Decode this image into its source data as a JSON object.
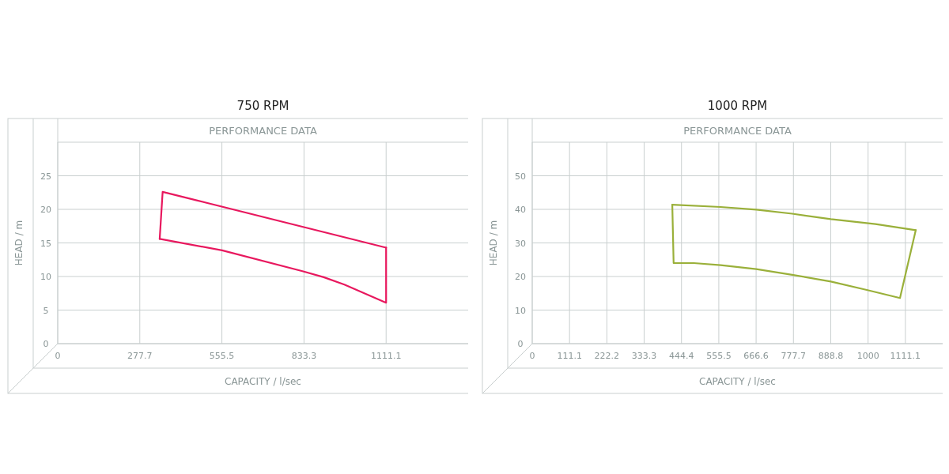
{
  "chart_data": [
    {
      "type": "line",
      "title": "750 RPM",
      "subtitle": "PERFORMANCE DATA",
      "xlabel": "CAPACITY / l/sec",
      "ylabel": "HEAD / m",
      "xlim": [
        0,
        1388.8
      ],
      "xticks": [
        0,
        277.7,
        555.5,
        833.3,
        1111.1
      ],
      "ylim": [
        0,
        30
      ],
      "yticks": [
        0,
        5,
        10,
        15,
        20,
        25
      ],
      "grid": true,
      "marker": "none",
      "line_style": "solid",
      "series": [
        {
          "color": "#e8185e",
          "x": [
            345,
            355,
            1111.1
          ],
          "values": [
            15.6,
            22.6,
            14.3
          ]
        },
        {
          "color": "#e8185e",
          "x": [
            345,
            556,
            828,
            900,
            970,
            1111.1,
            1111.1
          ],
          "values": [
            15.6,
            13.9,
            10.8,
            9.9,
            8.8,
            6.1,
            14.3
          ]
        }
      ]
    },
    {
      "type": "line",
      "title": "1000 RPM",
      "subtitle": "PERFORMANCE DATA",
      "xlabel": "CAPACITY / l/sec",
      "ylabel": "HEAD / m",
      "xlim": [
        0,
        1222.1
      ],
      "xticks": [
        0,
        111.1,
        222.2,
        333.3,
        444.4,
        555.5,
        666.6,
        777.7,
        888.8,
        1000,
        1111.1
      ],
      "ylim": [
        0,
        60
      ],
      "yticks": [
        0,
        10,
        20,
        30,
        40,
        50
      ],
      "grid": true,
      "marker": "none",
      "line_style": "solid",
      "series": [
        {
          "color": "#9ab03a",
          "x": [
            417,
            561,
            667,
            774,
            889,
            1022,
            1142
          ],
          "values": [
            41.4,
            40.7,
            39.9,
            38.7,
            37.1,
            35.6,
            33.8
          ]
        },
        {
          "color": "#9ab03a",
          "x": [
            417,
            421,
            481,
            561,
            667,
            774,
            889,
            996,
            1095,
            1142
          ],
          "values": [
            41.4,
            24.0,
            24.0,
            23.4,
            22.2,
            20.5,
            18.5,
            16.0,
            13.6,
            33.8
          ]
        }
      ]
    }
  ]
}
